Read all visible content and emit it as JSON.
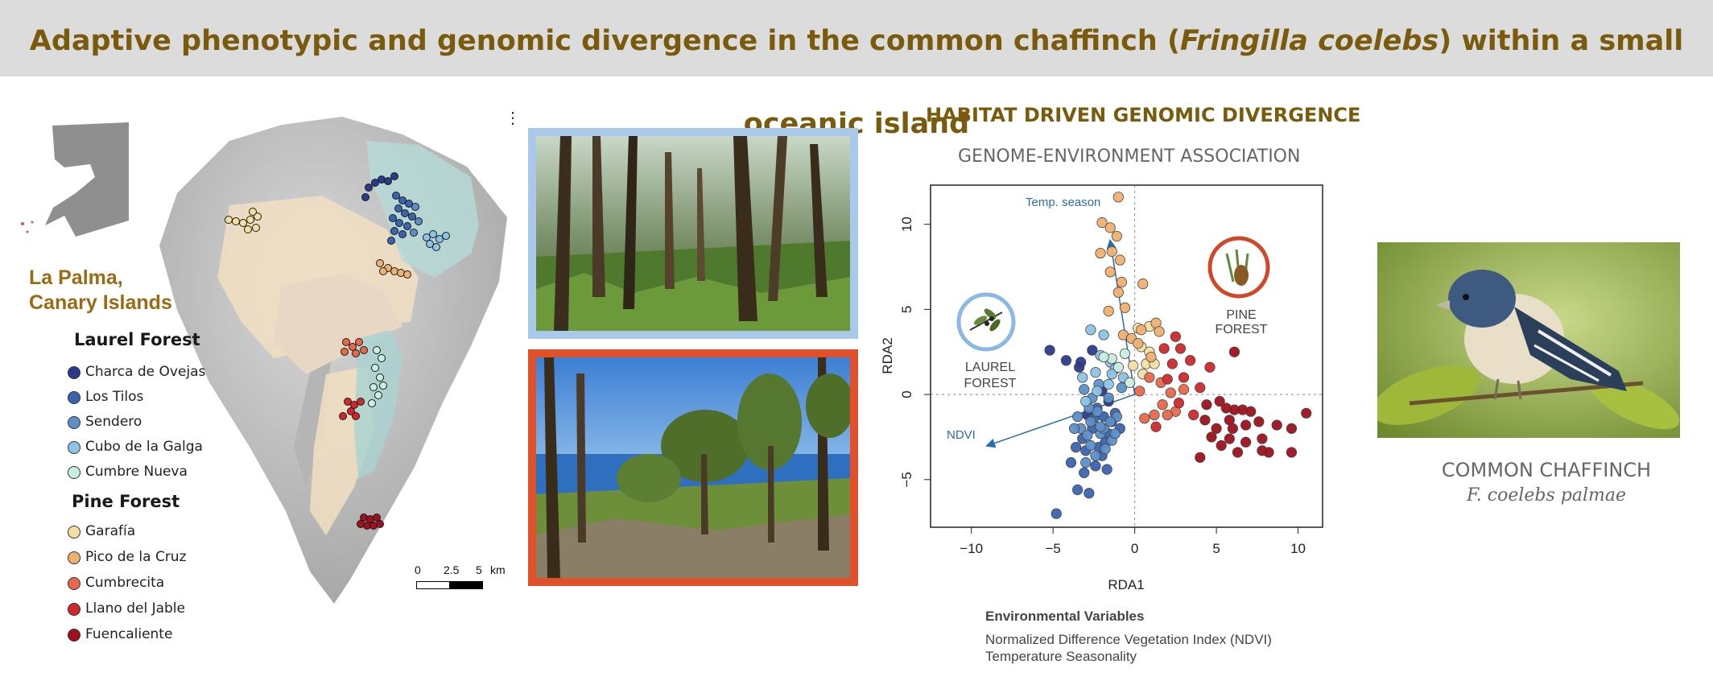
{
  "header": {
    "title_pre": "Adaptive phenotypic and genomic divergence in the common chaffinch (",
    "title_species": "Fringilla coelebs",
    "title_post": ") within a small oceanic island"
  },
  "map": {
    "location_line1": "La Palma,",
    "location_line2": "Canary Islands",
    "scale_labels": [
      "0",
      "2.5",
      "5",
      "km"
    ],
    "menu_glyph": "⋮",
    "legend_groups": [
      {
        "title": "Laurel Forest",
        "items": [
          {
            "label": "Charca de Ovejas",
            "color": "#2b3a8c"
          },
          {
            "label": "Los Tilos",
            "color": "#3a63b0"
          },
          {
            "label": "Sendero",
            "color": "#5c8fc9"
          },
          {
            "label": "Cubo de la Galga",
            "color": "#8cc3e6"
          },
          {
            "label": "Cumbre Nueva",
            "color": "#c8efe0"
          }
        ]
      },
      {
        "title": "Pine Forest",
        "items": [
          {
            "label": "Garafía",
            "color": "#f3dfa2"
          },
          {
            "label": "Pico de la Cruz",
            "color": "#f0b070"
          },
          {
            "label": "Cumbrecita",
            "color": "#e8684a"
          },
          {
            "label": "Llano del Jable",
            "color": "#d0282c"
          },
          {
            "label": "Fuencaliente",
            "color": "#a0101e"
          }
        ]
      }
    ]
  },
  "photos": {
    "laurel_border": "#a9c9ea",
    "pine_border": "#e0502a"
  },
  "analysis": {
    "title": "HABITAT DRIVEN GENOMIC DIVERGENCE",
    "subtitle": "GENOME-ENVIRONMENT ASSOCIATION",
    "laurel_label_line1": "LAUREL",
    "laurel_label_line2": "FOREST",
    "pine_label_line1": "PINE",
    "pine_label_line2": "FOREST",
    "arrow_temp_label": "Temp. season",
    "arrow_ndvi_label": "NDVI",
    "env_heading": "Environmental Variables",
    "env_items": [
      "Normalized Difference Vegetation Index (NDVI)",
      "Temperature Seasonality"
    ]
  },
  "chart_data": {
    "type": "scatter",
    "title": "",
    "xlabel": "RDA1",
    "ylabel": "RDA2",
    "xlim": [
      -12.5,
      11.5
    ],
    "ylim": [
      -7.8,
      12.3
    ],
    "xticks": [
      -10,
      -5,
      0,
      5,
      10
    ],
    "yticks": [
      -5,
      0,
      5,
      10
    ],
    "xtick_labels": [
      "−10",
      "−5",
      "0",
      "5",
      "10"
    ],
    "ytick_labels": [
      "−5",
      "0",
      "5",
      "10"
    ],
    "arrows": [
      {
        "name": "Temp. season",
        "x": -1.5,
        "y": 9.0
      },
      {
        "name": "NDVI",
        "x": -9.0,
        "y": -3.0
      }
    ],
    "series": [
      {
        "name": "Charca de Ovejas",
        "color": "#2b3a8c",
        "points": [
          [
            -5.2,
            2.6
          ],
          [
            -4.2,
            2.0
          ],
          [
            -2.6,
            2.6
          ],
          [
            -3.4,
            1.6
          ],
          [
            -2.0,
            0.2
          ],
          [
            -1.6,
            -0.4
          ],
          [
            -2.9,
            -1.2
          ],
          [
            -3.3,
            1.9
          ]
        ]
      },
      {
        "name": "Los Tilos",
        "color": "#3a63b0",
        "points": [
          [
            -4.8,
            -7.0
          ],
          [
            -3.5,
            -5.6
          ],
          [
            -2.8,
            -5.8
          ],
          [
            -3.9,
            -4.0
          ],
          [
            -3.1,
            -4.6
          ],
          [
            -2.4,
            -4.2
          ],
          [
            -2.2,
            -3.1
          ],
          [
            -2.0,
            -3.6
          ],
          [
            -1.8,
            -2.8
          ],
          [
            -1.6,
            -2.3
          ],
          [
            -3.0,
            -3.3
          ],
          [
            -1.4,
            -1.6
          ],
          [
            -2.6,
            -2.0
          ],
          [
            -1.2,
            -1.1
          ],
          [
            -2.3,
            -0.8
          ],
          [
            -3.2,
            -2.6
          ],
          [
            -1.7,
            -4.4
          ],
          [
            -2.5,
            -1.4
          ],
          [
            -3.6,
            -3.1
          ],
          [
            -0.9,
            -2.0
          ],
          [
            -1.9,
            -1.3
          ]
        ]
      },
      {
        "name": "Sendero",
        "color": "#5c8fc9",
        "points": [
          [
            -2.7,
            -1.6
          ],
          [
            -2.1,
            -2.3
          ],
          [
            -3.3,
            -2.0
          ],
          [
            -1.4,
            -2.7
          ],
          [
            -2.4,
            -3.6
          ],
          [
            -2.9,
            -2.4
          ],
          [
            -1.1,
            -1.3
          ],
          [
            -1.8,
            -3.2
          ],
          [
            -3.7,
            -2.0
          ],
          [
            -1.6,
            -0.2
          ],
          [
            -2.6,
            -0.2
          ],
          [
            -2.2,
            0.6
          ],
          [
            -3.1,
            0.3
          ],
          [
            -2.7,
            -3.0
          ],
          [
            -1.9,
            -2.0
          ],
          [
            -2.3,
            -1.0
          ],
          [
            -3.5,
            -1.3
          ],
          [
            -0.8,
            0.4
          ],
          [
            -1.2,
            -2.3
          ],
          [
            -2.8,
            -0.8
          ],
          [
            -1.5,
            -1.6
          ],
          [
            -2.1,
            -1.9
          ],
          [
            -3.0,
            -4.0
          ]
        ]
      },
      {
        "name": "Cubo de la Galga",
        "color": "#8cc3e6",
        "points": [
          [
            -2.7,
            3.8
          ],
          [
            -1.9,
            3.5
          ],
          [
            -2.1,
            2.3
          ],
          [
            -1.5,
            1.9
          ],
          [
            -2.4,
            1.3
          ],
          [
            -1.2,
            1.5
          ],
          [
            -3.2,
            1.0
          ],
          [
            -0.7,
            1.0
          ],
          [
            -1.6,
            0.6
          ],
          [
            -2.3,
            0.2
          ],
          [
            -1.4,
            1.2
          ],
          [
            -3.0,
            -0.4
          ]
        ]
      },
      {
        "name": "Cumbre Nueva",
        "color": "#c8efe0",
        "points": [
          [
            -0.6,
            2.4
          ],
          [
            -1.0,
            1.6
          ],
          [
            -0.3,
            0.7
          ],
          [
            -1.4,
            2.1
          ],
          [
            -1.9,
            2.2
          ]
        ]
      },
      {
        "name": "Garafía",
        "color": "#f3dfa2",
        "points": [
          [
            0.4,
            2.8
          ],
          [
            0.7,
            1.8
          ],
          [
            -0.1,
            1.7
          ],
          [
            1.2,
            1.8
          ],
          [
            0.5,
            1.2
          ],
          [
            0.9,
            2.5
          ],
          [
            0.2,
            3.9
          ],
          [
            0.9,
            4.0
          ]
        ]
      },
      {
        "name": "Pico de la Cruz",
        "color": "#f0b070",
        "points": [
          [
            -1.0,
            11.6
          ],
          [
            -2.0,
            10.1
          ],
          [
            -1.5,
            9.8
          ],
          [
            -1.1,
            9.3
          ],
          [
            -1.4,
            8.4
          ],
          [
            -0.9,
            7.9
          ],
          [
            -2.1,
            8.3
          ],
          [
            -1.5,
            7.2
          ],
          [
            -0.8,
            6.6
          ],
          [
            -1.0,
            6.0
          ],
          [
            0.5,
            6.5
          ],
          [
            -0.6,
            5.1
          ],
          [
            -1.6,
            4.9
          ],
          [
            1.3,
            4.2
          ],
          [
            0.4,
            3.8
          ],
          [
            1.5,
            3.7
          ],
          [
            -0.7,
            3.5
          ],
          [
            -0.2,
            3.3
          ],
          [
            0.2,
            3.0
          ],
          [
            1.0,
            2.2
          ]
        ]
      },
      {
        "name": "Cumbrecita",
        "color": "#e8684a",
        "points": [
          [
            0.9,
            1.0
          ],
          [
            1.6,
            0.7
          ],
          [
            0.3,
            0.2
          ],
          [
            2.2,
            0.1
          ],
          [
            1.7,
            -0.6
          ],
          [
            0.6,
            -1.4
          ],
          [
            2.5,
            -1.0
          ],
          [
            1.2,
            -1.2
          ],
          [
            3.0,
            0.3
          ],
          [
            2.0,
            -1.2
          ]
        ]
      },
      {
        "name": "Llano del Jable",
        "color": "#d0282c",
        "points": [
          [
            1.8,
            2.7
          ],
          [
            2.5,
            3.4
          ],
          [
            2.8,
            2.7
          ],
          [
            3.4,
            2.0
          ],
          [
            2.3,
            1.8
          ],
          [
            3.0,
            1.0
          ],
          [
            4.0,
            0.4
          ],
          [
            1.3,
            -1.9
          ],
          [
            2.0,
            0.9
          ],
          [
            3.6,
            -1.2
          ],
          [
            2.7,
            -0.5
          ],
          [
            4.6,
            1.6
          ]
        ]
      },
      {
        "name": "Fuencaliente",
        "color": "#a0101e",
        "points": [
          [
            6.1,
            2.5
          ],
          [
            4.4,
            -0.6
          ],
          [
            5.2,
            -0.4
          ],
          [
            5.6,
            -0.8
          ],
          [
            6.1,
            -0.9
          ],
          [
            6.6,
            -0.9
          ],
          [
            7.1,
            -1.0
          ],
          [
            5.8,
            -1.5
          ],
          [
            6.8,
            -1.8
          ],
          [
            7.6,
            -1.6
          ],
          [
            8.7,
            -1.8
          ],
          [
            10.5,
            -1.1
          ],
          [
            5.0,
            -2.0
          ],
          [
            6.0,
            -2.0
          ],
          [
            7.8,
            -2.6
          ],
          [
            9.6,
            -2.0
          ],
          [
            5.3,
            -3.0
          ],
          [
            4.7,
            -2.5
          ],
          [
            6.8,
            -2.8
          ],
          [
            7.8,
            -3.3
          ],
          [
            6.3,
            -3.4
          ],
          [
            8.2,
            -3.4
          ],
          [
            9.6,
            -3.4
          ],
          [
            5.8,
            -2.6
          ],
          [
            4.3,
            -1.5
          ],
          [
            4.0,
            -3.7
          ]
        ]
      }
    ]
  },
  "chaffinch": {
    "name": "COMMON CHAFFINCH",
    "scientific": "F. coelebs palmae"
  }
}
